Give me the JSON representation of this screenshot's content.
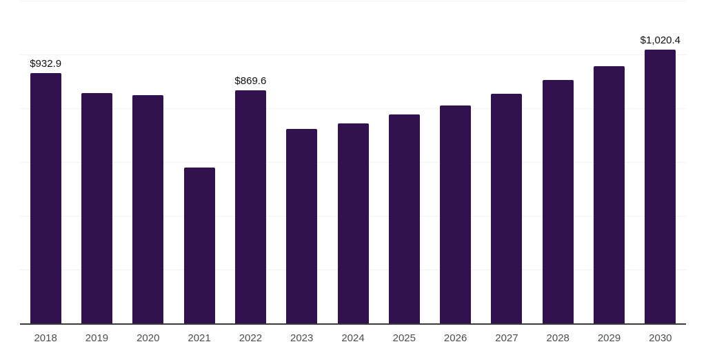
{
  "chart_data": {
    "type": "bar",
    "title": "",
    "xlabel": "",
    "ylabel": "",
    "categories": [
      "2018",
      "2019",
      "2020",
      "2021",
      "2022",
      "2023",
      "2024",
      "2025",
      "2026",
      "2027",
      "2028",
      "2029",
      "2030"
    ],
    "values": [
      932.9,
      859,
      851,
      581,
      869.6,
      726,
      747,
      780,
      813,
      856,
      907,
      958,
      1020.4
    ],
    "data_labels": {
      "2018": "$932.9",
      "2022": "$869.6",
      "2030": "$1,020.4"
    },
    "ylim": [
      0,
      1200
    ],
    "grid_step": 200,
    "grid": true,
    "legend": false,
    "colors": {
      "bar": "#32124e",
      "axis_line": "#3b3b3b",
      "gridline": "#f2f2f2",
      "x_tick_label": "#4d4d4d",
      "data_label": "#0f0f0f",
      "background": "#ffffff"
    }
  }
}
